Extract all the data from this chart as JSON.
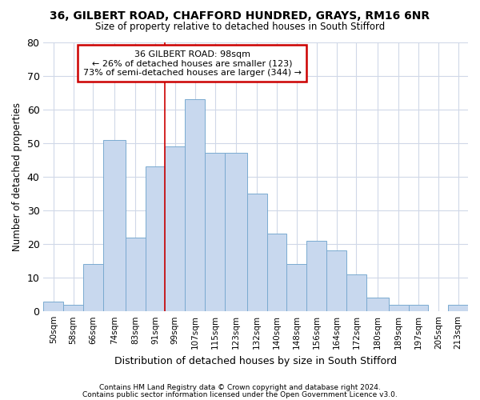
{
  "title1": "36, GILBERT ROAD, CHAFFORD HUNDRED, GRAYS, RM16 6NR",
  "title2": "Size of property relative to detached houses in South Stifford",
  "xlabel": "Distribution of detached houses by size in South Stifford",
  "ylabel": "Number of detached properties",
  "footnote1": "Contains HM Land Registry data © Crown copyright and database right 2024.",
  "footnote2": "Contains public sector information licensed under the Open Government Licence v3.0.",
  "annotation_title": "36 GILBERT ROAD: 98sqm",
  "annotation_line2": "← 26% of detached houses are smaller (123)",
  "annotation_line3": "73% of semi-detached houses are larger (344) →",
  "bar_color": "#c8d8ee",
  "bar_edge_color": "#7aaad0",
  "red_line_x": 99,
  "categories": [
    "50sqm",
    "58sqm",
    "66sqm",
    "74sqm",
    "83sqm",
    "91sqm",
    "99sqm",
    "107sqm",
    "115sqm",
    "123sqm",
    "132sqm",
    "140sqm",
    "148sqm",
    "156sqm",
    "164sqm",
    "172sqm",
    "180sqm",
    "189sqm",
    "197sqm",
    "205sqm",
    "213sqm"
  ],
  "values": [
    3,
    2,
    14,
    51,
    22,
    43,
    49,
    63,
    47,
    47,
    35,
    23,
    14,
    21,
    18,
    11,
    4,
    2,
    2,
    0,
    2
  ],
  "bin_edges": [
    50,
    58,
    66,
    74,
    83,
    91,
    99,
    107,
    115,
    123,
    132,
    140,
    148,
    156,
    164,
    172,
    180,
    189,
    197,
    205,
    213,
    221
  ],
  "ylim": [
    0,
    80
  ],
  "yticks": [
    0,
    10,
    20,
    30,
    40,
    50,
    60,
    70,
    80
  ],
  "bg_color": "#ffffff",
  "plot_bg_color": "#ffffff",
  "grid_color": "#d0d8e8",
  "annotation_box_color": "#ffffff",
  "annotation_box_edge": "#cc0000",
  "red_line_color": "#cc0000"
}
